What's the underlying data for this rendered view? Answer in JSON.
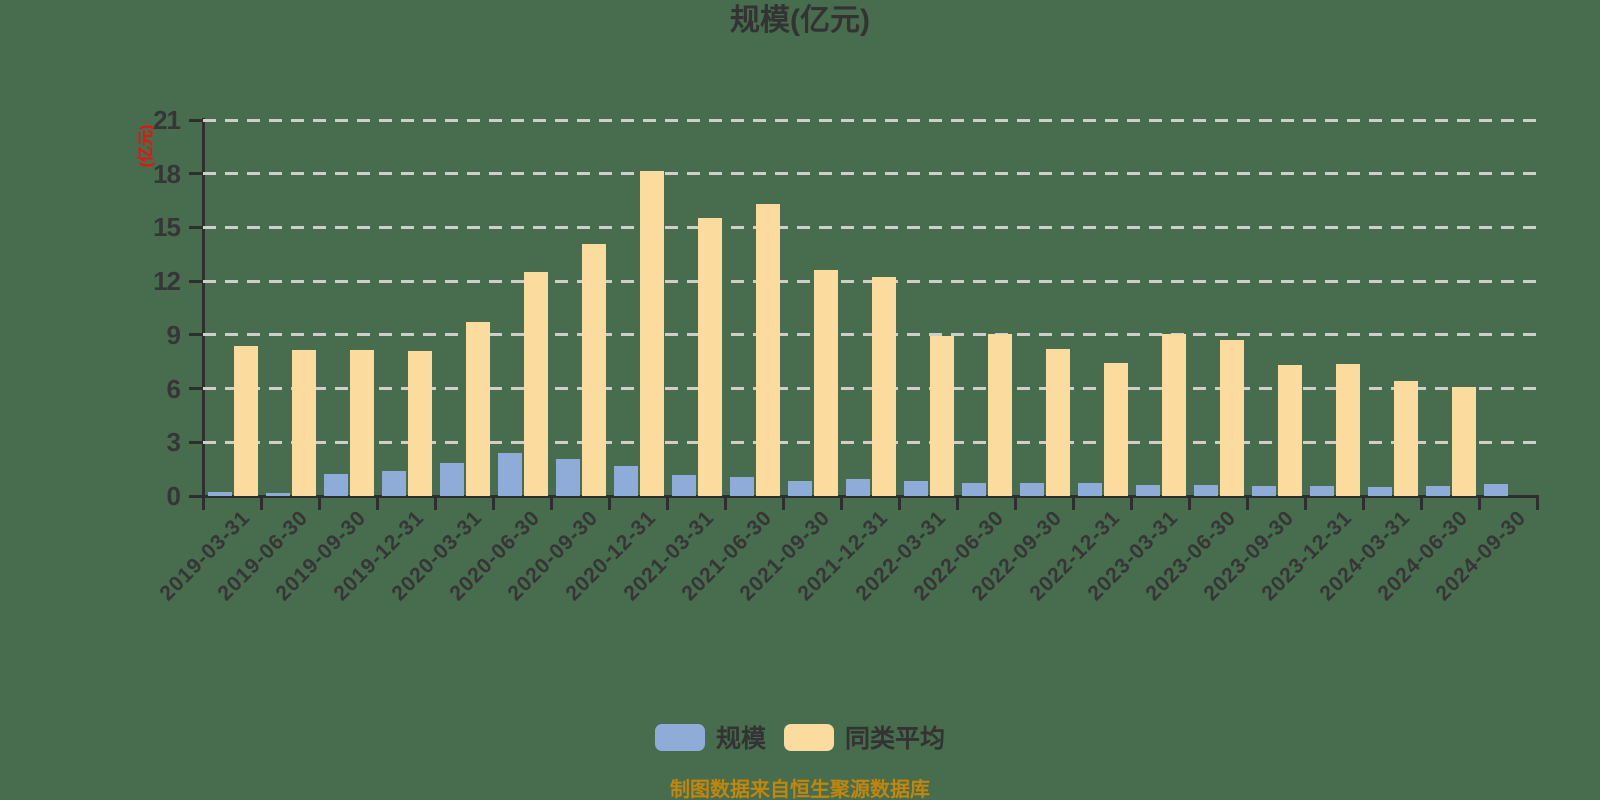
{
  "chart": {
    "title": "规模(亿元)",
    "y_axis_unit": "(亿元)",
    "source_note": "制图数据来自恒生聚源数据库"
  },
  "colors": {
    "background": "#486c4e",
    "axis": "#2e2e2e",
    "gridline": "#cfcfca",
    "tick_label": "#363636",
    "title": "#333333",
    "unit_label": "#f20d0d",
    "source_note": "#c0860e",
    "legend_text": "#333333",
    "series_scale": "#8facd9",
    "series_peer": "#fbdb9e"
  },
  "chart_data": {
    "type": "bar",
    "title": "规模(亿元)",
    "ylabel": "(亿元)",
    "xlabel": "",
    "ylim": [
      0,
      21
    ],
    "yticks": [
      0,
      3,
      6,
      9,
      12,
      15,
      18,
      21
    ],
    "grid": true,
    "grid_style": "dashed",
    "legend_position": "bottom",
    "categories": [
      "2019-03-31",
      "2019-06-30",
      "2019-09-30",
      "2019-12-31",
      "2020-03-31",
      "2020-06-30",
      "2020-09-30",
      "2020-12-31",
      "2021-03-31",
      "2021-06-30",
      "2021-09-30",
      "2021-12-31",
      "2022-03-31",
      "2022-06-30",
      "2022-09-30",
      "2022-12-31",
      "2023-03-31",
      "2023-06-30",
      "2023-09-30",
      "2023-12-31",
      "2024-03-31",
      "2024-06-30",
      "2024-09-30"
    ],
    "series": [
      {
        "name": "规模",
        "color": "#8facd9",
        "values": [
          0.22,
          0.18,
          1.25,
          1.4,
          1.82,
          2.38,
          2.05,
          1.65,
          1.18,
          1.05,
          0.85,
          0.95,
          0.85,
          0.75,
          0.72,
          0.7,
          0.63,
          0.62,
          0.58,
          0.56,
          0.52,
          0.56,
          0.65
        ]
      },
      {
        "name": "同类平均",
        "color": "#fbdb9e",
        "values": [
          8.4,
          8.15,
          8.15,
          8.1,
          9.7,
          12.5,
          14.1,
          18.15,
          15.5,
          16.3,
          12.6,
          12.25,
          8.95,
          9.05,
          8.2,
          7.45,
          9.05,
          8.7,
          7.3,
          7.35,
          6.45,
          6.1,
          0
        ]
      }
    ]
  }
}
